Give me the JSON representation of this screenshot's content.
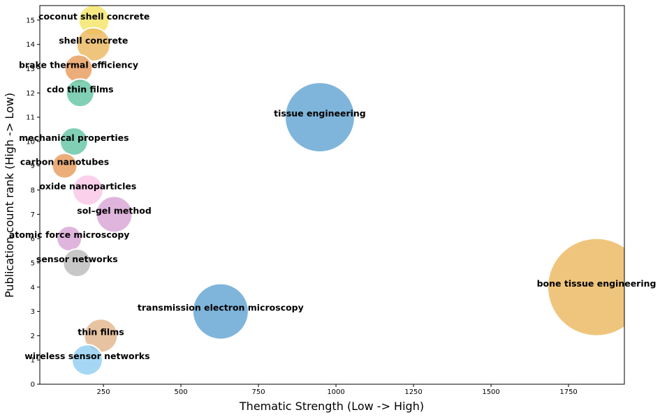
{
  "chart_data": {
    "type": "scatter",
    "title": "",
    "xlabel": "Thematic Strength (Low -> High)",
    "ylabel": "Publication count rank (High -> Low)",
    "xlim": [
      45,
      1930
    ],
    "ylim": [
      0,
      15.6
    ],
    "xticks": [
      250,
      500,
      750,
      1000,
      1250,
      1500,
      1750
    ],
    "yticks": [
      0,
      1,
      2,
      3,
      4,
      5,
      6,
      7,
      8,
      9,
      10,
      11,
      12,
      13,
      14,
      15
    ],
    "grid": false,
    "points": [
      {
        "label": "coconut shell concrete",
        "x": 220,
        "y": 15,
        "size": 22,
        "color": "#f5e463"
      },
      {
        "label": "shell concrete",
        "x": 218,
        "y": 14,
        "size": 24,
        "color": "#ebb65c"
      },
      {
        "label": "brake thermal efficiency",
        "x": 170,
        "y": 13,
        "size": 20,
        "color": "#e69a5a"
      },
      {
        "label": "cdo thin films",
        "x": 175,
        "y": 12,
        "size": 20,
        "color": "#62c4a2"
      },
      {
        "label": "tissue engineering",
        "x": 948,
        "y": 11,
        "size": 50,
        "color": "#5fa3d2"
      },
      {
        "label": "mechanical properties",
        "x": 155,
        "y": 10,
        "size": 20,
        "color": "#62c4a2"
      },
      {
        "label": "carbon nanotubes",
        "x": 125,
        "y": 9,
        "size": 18,
        "color": "#e69a5a"
      },
      {
        "label": "oxide nanoparticles",
        "x": 200,
        "y": 8,
        "size": 22,
        "color": "#f9c4e6"
      },
      {
        "label": "sol–gel method",
        "x": 285,
        "y": 7,
        "size": 26,
        "color": "#d7a2d6"
      },
      {
        "label": "atomic force microscopy",
        "x": 140,
        "y": 6,
        "size": 18,
        "color": "#d7a2d6"
      },
      {
        "label": "sensor networks",
        "x": 165,
        "y": 5,
        "size": 20,
        "color": "#b9b9b9"
      },
      {
        "label": "bone tissue engineering",
        "x": 1840,
        "y": 4,
        "size": 70,
        "color": "#ebb65c"
      },
      {
        "label": "transmission electron microscopy",
        "x": 628,
        "y": 3,
        "size": 40,
        "color": "#5fa3d2"
      },
      {
        "label": "thin films",
        "x": 242,
        "y": 2,
        "size": 24,
        "color": "#e2b48a"
      },
      {
        "label": "wireless sensor networks",
        "x": 198,
        "y": 1,
        "size": 22,
        "color": "#8ecdf2"
      }
    ]
  }
}
